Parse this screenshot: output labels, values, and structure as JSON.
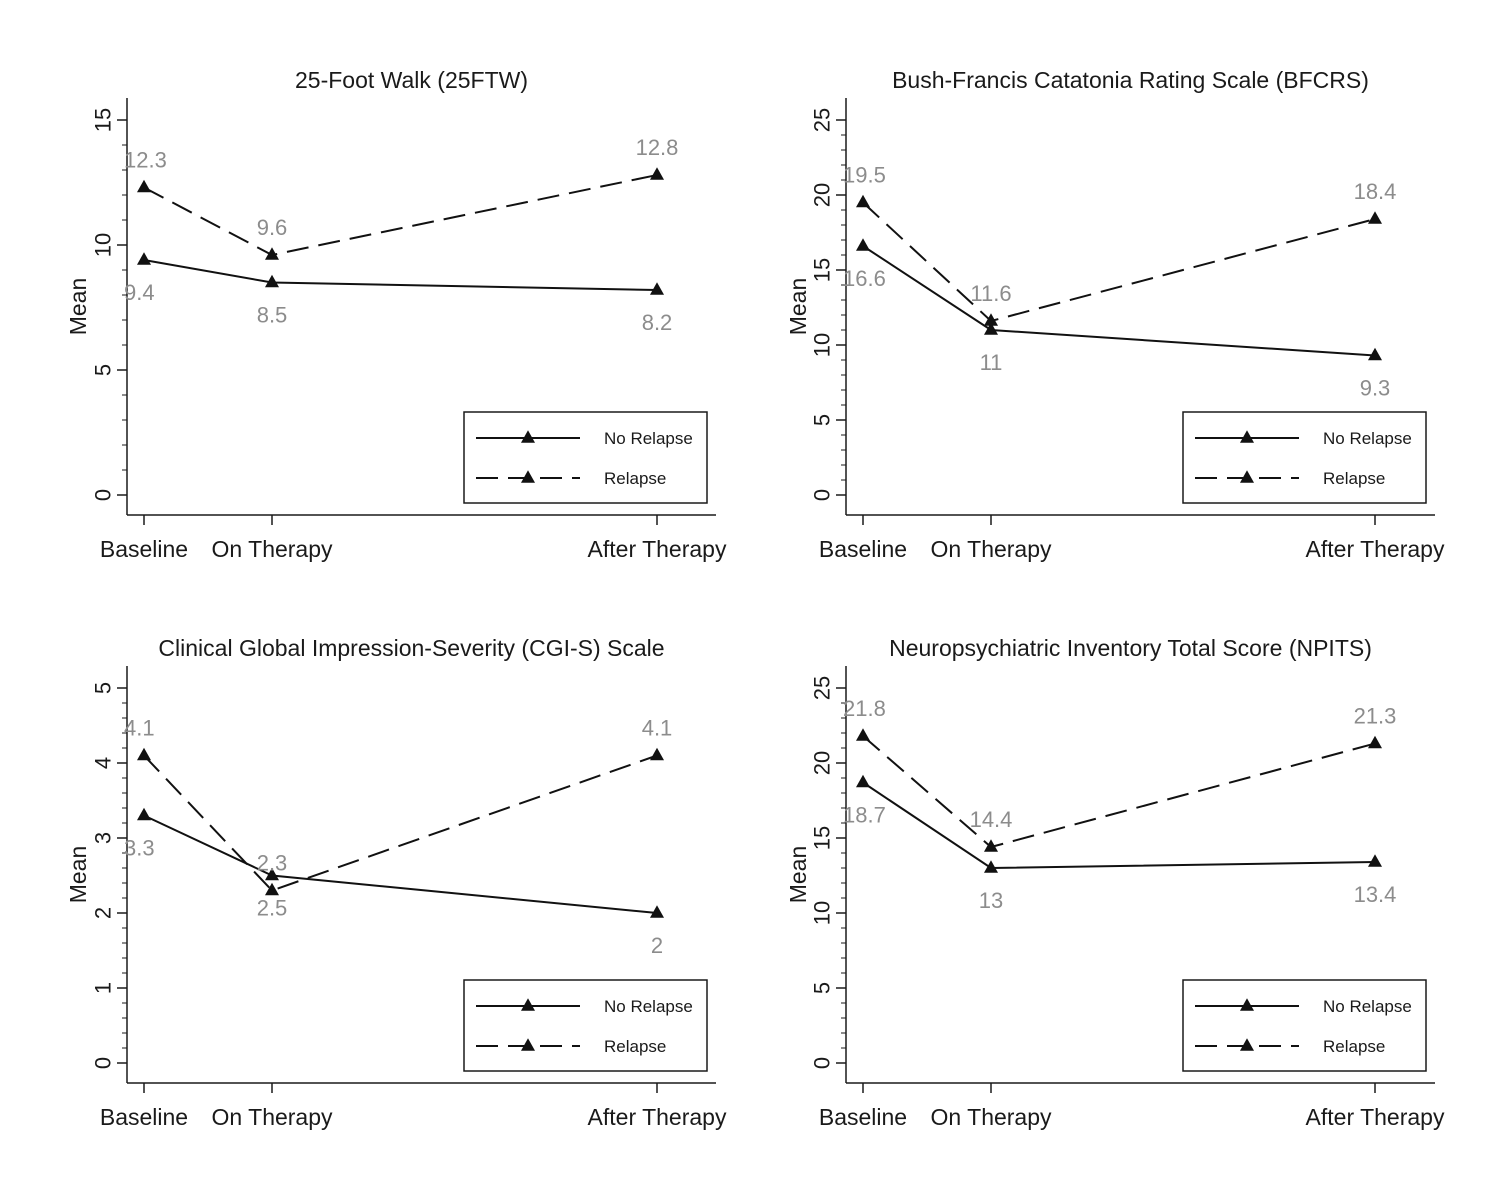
{
  "chart_data": [
    {
      "type": "line",
      "title": "25-Foot Walk (25FTW)",
      "ylabel": "Mean",
      "xlabel": "",
      "categories": [
        "Baseline",
        "On Therapy",
        "After Therapy"
      ],
      "x": [
        0,
        1,
        4
      ],
      "ylim": [
        0,
        15
      ],
      "yticks": [
        0,
        5,
        10,
        15
      ],
      "series": [
        {
          "name": "No Relapse",
          "style": "solid",
          "values": [
            9.4,
            8.5,
            8.2
          ],
          "labels": [
            "9.4",
            "8.5",
            "8.2"
          ],
          "label_pos": [
            "below",
            "below",
            "below"
          ]
        },
        {
          "name": "Relapse",
          "style": "dashed",
          "values": [
            12.3,
            9.6,
            12.8
          ],
          "labels": [
            "12.3",
            "9.6",
            "12.8"
          ],
          "label_pos": [
            "above",
            "above",
            "above"
          ]
        }
      ],
      "legend": "bottom-right",
      "grid": false
    },
    {
      "type": "line",
      "title": "Bush-Francis Catatonia Rating Scale (BFCRS)",
      "ylabel": "Mean",
      "xlabel": "",
      "categories": [
        "Baseline",
        "On Therapy",
        "After Therapy"
      ],
      "x": [
        0,
        1,
        4
      ],
      "ylim": [
        0,
        25
      ],
      "yticks": [
        0,
        5,
        10,
        15,
        20,
        25
      ],
      "series": [
        {
          "name": "No Relapse",
          "style": "solid",
          "values": [
            16.6,
            11,
            9.3
          ],
          "labels": [
            "16.6",
            "11",
            "9.3"
          ],
          "label_pos": [
            "below",
            "below",
            "below"
          ]
        },
        {
          "name": "Relapse",
          "style": "dashed",
          "values": [
            19.5,
            11.6,
            18.4
          ],
          "labels": [
            "19.5",
            "11.6",
            "18.4"
          ],
          "label_pos": [
            "above",
            "above",
            "above"
          ]
        }
      ],
      "legend": "bottom-right",
      "grid": false
    },
    {
      "type": "line",
      "title": "Clinical Global Impression-Severity (CGI-S) Scale",
      "ylabel": "Mean",
      "xlabel": "",
      "categories": [
        "Baseline",
        "On Therapy",
        "After Therapy"
      ],
      "x": [
        0,
        1,
        4
      ],
      "ylim": [
        0,
        5
      ],
      "yticks": [
        0,
        1,
        2,
        3,
        4,
        5
      ],
      "series": [
        {
          "name": "No Relapse",
          "style": "solid",
          "values": [
            3.3,
            2.5,
            2
          ],
          "labels": [
            "3.3",
            "2.5",
            "2"
          ],
          "label_pos": [
            "below",
            "below",
            "below"
          ]
        },
        {
          "name": "Relapse",
          "style": "dashed",
          "values": [
            4.1,
            2.3,
            4.1
          ],
          "labels": [
            "4.1",
            "2.3",
            "4.1"
          ],
          "label_pos": [
            "above",
            "above",
            "above"
          ]
        }
      ],
      "legend": "bottom-right",
      "grid": false
    },
    {
      "type": "line",
      "title": "Neuropsychiatric Inventory Total Score (NPITS)",
      "ylabel": "Mean",
      "xlabel": "",
      "categories": [
        "Baseline",
        "On Therapy",
        "After Therapy"
      ],
      "x": [
        0,
        1,
        4
      ],
      "ylim": [
        0,
        25
      ],
      "yticks": [
        0,
        5,
        10,
        15,
        20,
        25
      ],
      "series": [
        {
          "name": "No Relapse",
          "style": "solid",
          "values": [
            18.7,
            13,
            13.4
          ],
          "labels": [
            "18.7",
            "13",
            "13.4"
          ],
          "label_pos": [
            "below",
            "below",
            "below"
          ]
        },
        {
          "name": "Relapse",
          "style": "dashed",
          "values": [
            21.8,
            14.4,
            21.3
          ],
          "labels": [
            "21.8",
            "14.4",
            "21.3"
          ],
          "label_pos": [
            "above",
            "above",
            "above"
          ]
        }
      ],
      "legend": "bottom-right",
      "grid": false
    }
  ]
}
